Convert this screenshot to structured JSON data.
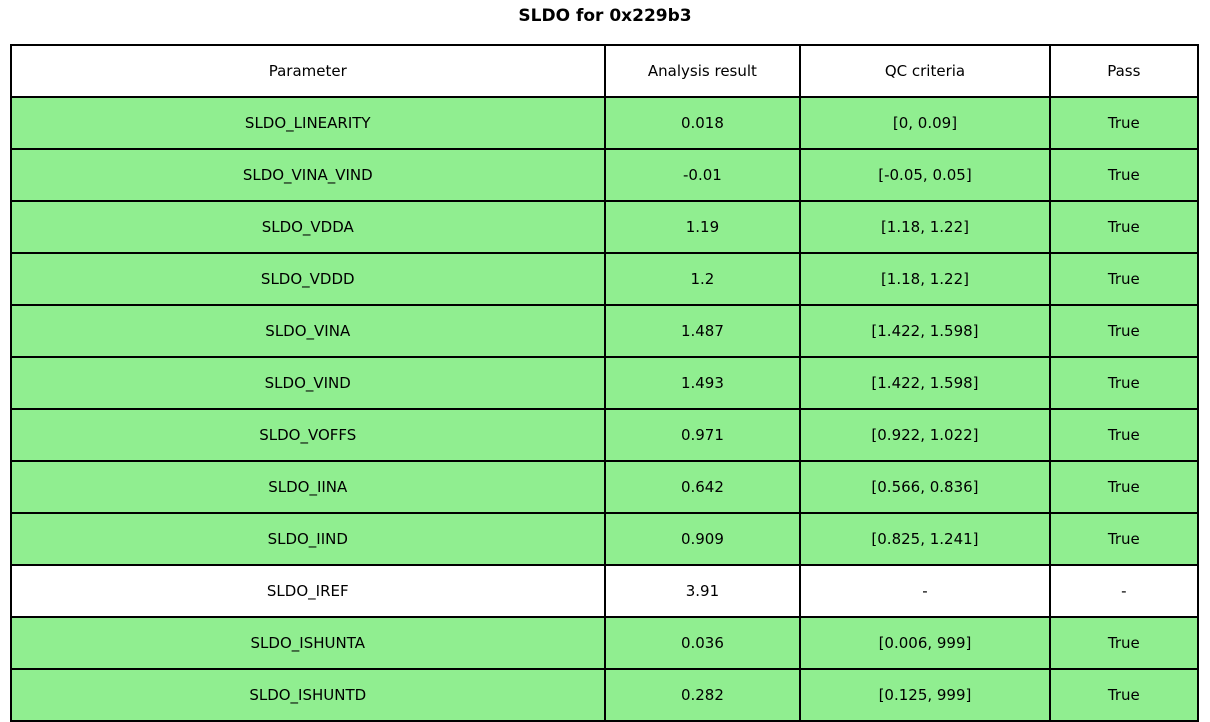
{
  "title": "SLDO for 0x229b3",
  "table": {
    "columns": [
      "Parameter",
      "Analysis result",
      "QC criteria",
      "Pass"
    ],
    "rows": [
      {
        "parameter": "SLDO_LINEARITY",
        "result": "0.018",
        "criteria": "[0, 0.09]",
        "pass": "True",
        "highlight": true
      },
      {
        "parameter": "SLDO_VINA_VIND",
        "result": "-0.01",
        "criteria": "[-0.05, 0.05]",
        "pass": "True",
        "highlight": true
      },
      {
        "parameter": "SLDO_VDDA",
        "result": "1.19",
        "criteria": "[1.18, 1.22]",
        "pass": "True",
        "highlight": true
      },
      {
        "parameter": "SLDO_VDDD",
        "result": "1.2",
        "criteria": "[1.18, 1.22]",
        "pass": "True",
        "highlight": true
      },
      {
        "parameter": "SLDO_VINA",
        "result": "1.487",
        "criteria": "[1.422, 1.598]",
        "pass": "True",
        "highlight": true
      },
      {
        "parameter": "SLDO_VIND",
        "result": "1.493",
        "criteria": "[1.422, 1.598]",
        "pass": "True",
        "highlight": true
      },
      {
        "parameter": "SLDO_VOFFS",
        "result": "0.971",
        "criteria": "[0.922, 1.022]",
        "pass": "True",
        "highlight": true
      },
      {
        "parameter": "SLDO_IINA",
        "result": "0.642",
        "criteria": "[0.566, 0.836]",
        "pass": "True",
        "highlight": true
      },
      {
        "parameter": "SLDO_IIND",
        "result": "0.909",
        "criteria": "[0.825, 1.241]",
        "pass": "True",
        "highlight": true
      },
      {
        "parameter": "SLDO_IREF",
        "result": "3.91",
        "criteria": "-",
        "pass": "-",
        "highlight": false
      },
      {
        "parameter": "SLDO_ISHUNTA",
        "result": "0.036",
        "criteria": "[0.006, 999]",
        "pass": "True",
        "highlight": true
      },
      {
        "parameter": "SLDO_ISHUNTD",
        "result": "0.282",
        "criteria": "[0.125, 999]",
        "pass": "True",
        "highlight": true
      }
    ],
    "colors": {
      "pass_green": "#90ee90",
      "plain_bg": "#ffffff",
      "border": "#000000"
    }
  },
  "chart_data": {
    "type": "table",
    "title": "SLDO for 0x229b3",
    "columns": [
      "Parameter",
      "Analysis result",
      "QC criteria",
      "Pass"
    ],
    "rows": [
      [
        "SLDO_LINEARITY",
        "0.018",
        "[0, 0.09]",
        "True"
      ],
      [
        "SLDO_VINA_VIND",
        "-0.01",
        "[-0.05, 0.05]",
        "True"
      ],
      [
        "SLDO_VDDA",
        "1.19",
        "[1.18, 1.22]",
        "True"
      ],
      [
        "SLDO_VDDD",
        "1.2",
        "[1.18, 1.22]",
        "True"
      ],
      [
        "SLDO_VINA",
        "1.487",
        "[1.422, 1.598]",
        "True"
      ],
      [
        "SLDO_VIND",
        "1.493",
        "[1.422, 1.598]",
        "True"
      ],
      [
        "SLDO_VOFFS",
        "0.971",
        "[0.922, 1.022]",
        "True"
      ],
      [
        "SLDO_IINA",
        "0.642",
        "[0.566, 0.836]",
        "True"
      ],
      [
        "SLDO_IIND",
        "0.909",
        "[0.825, 1.241]",
        "True"
      ],
      [
        "SLDO_IREF",
        "3.91",
        "-",
        "-"
      ],
      [
        "SLDO_ISHUNTA",
        "0.036",
        "[0.006, 999]",
        "True"
      ],
      [
        "SLDO_ISHUNTD",
        "0.282",
        "[0.125, 999]",
        "True"
      ]
    ],
    "row_highlight_color": "#90ee90",
    "unhighlighted_rows": [
      "SLDO_IREF"
    ]
  }
}
